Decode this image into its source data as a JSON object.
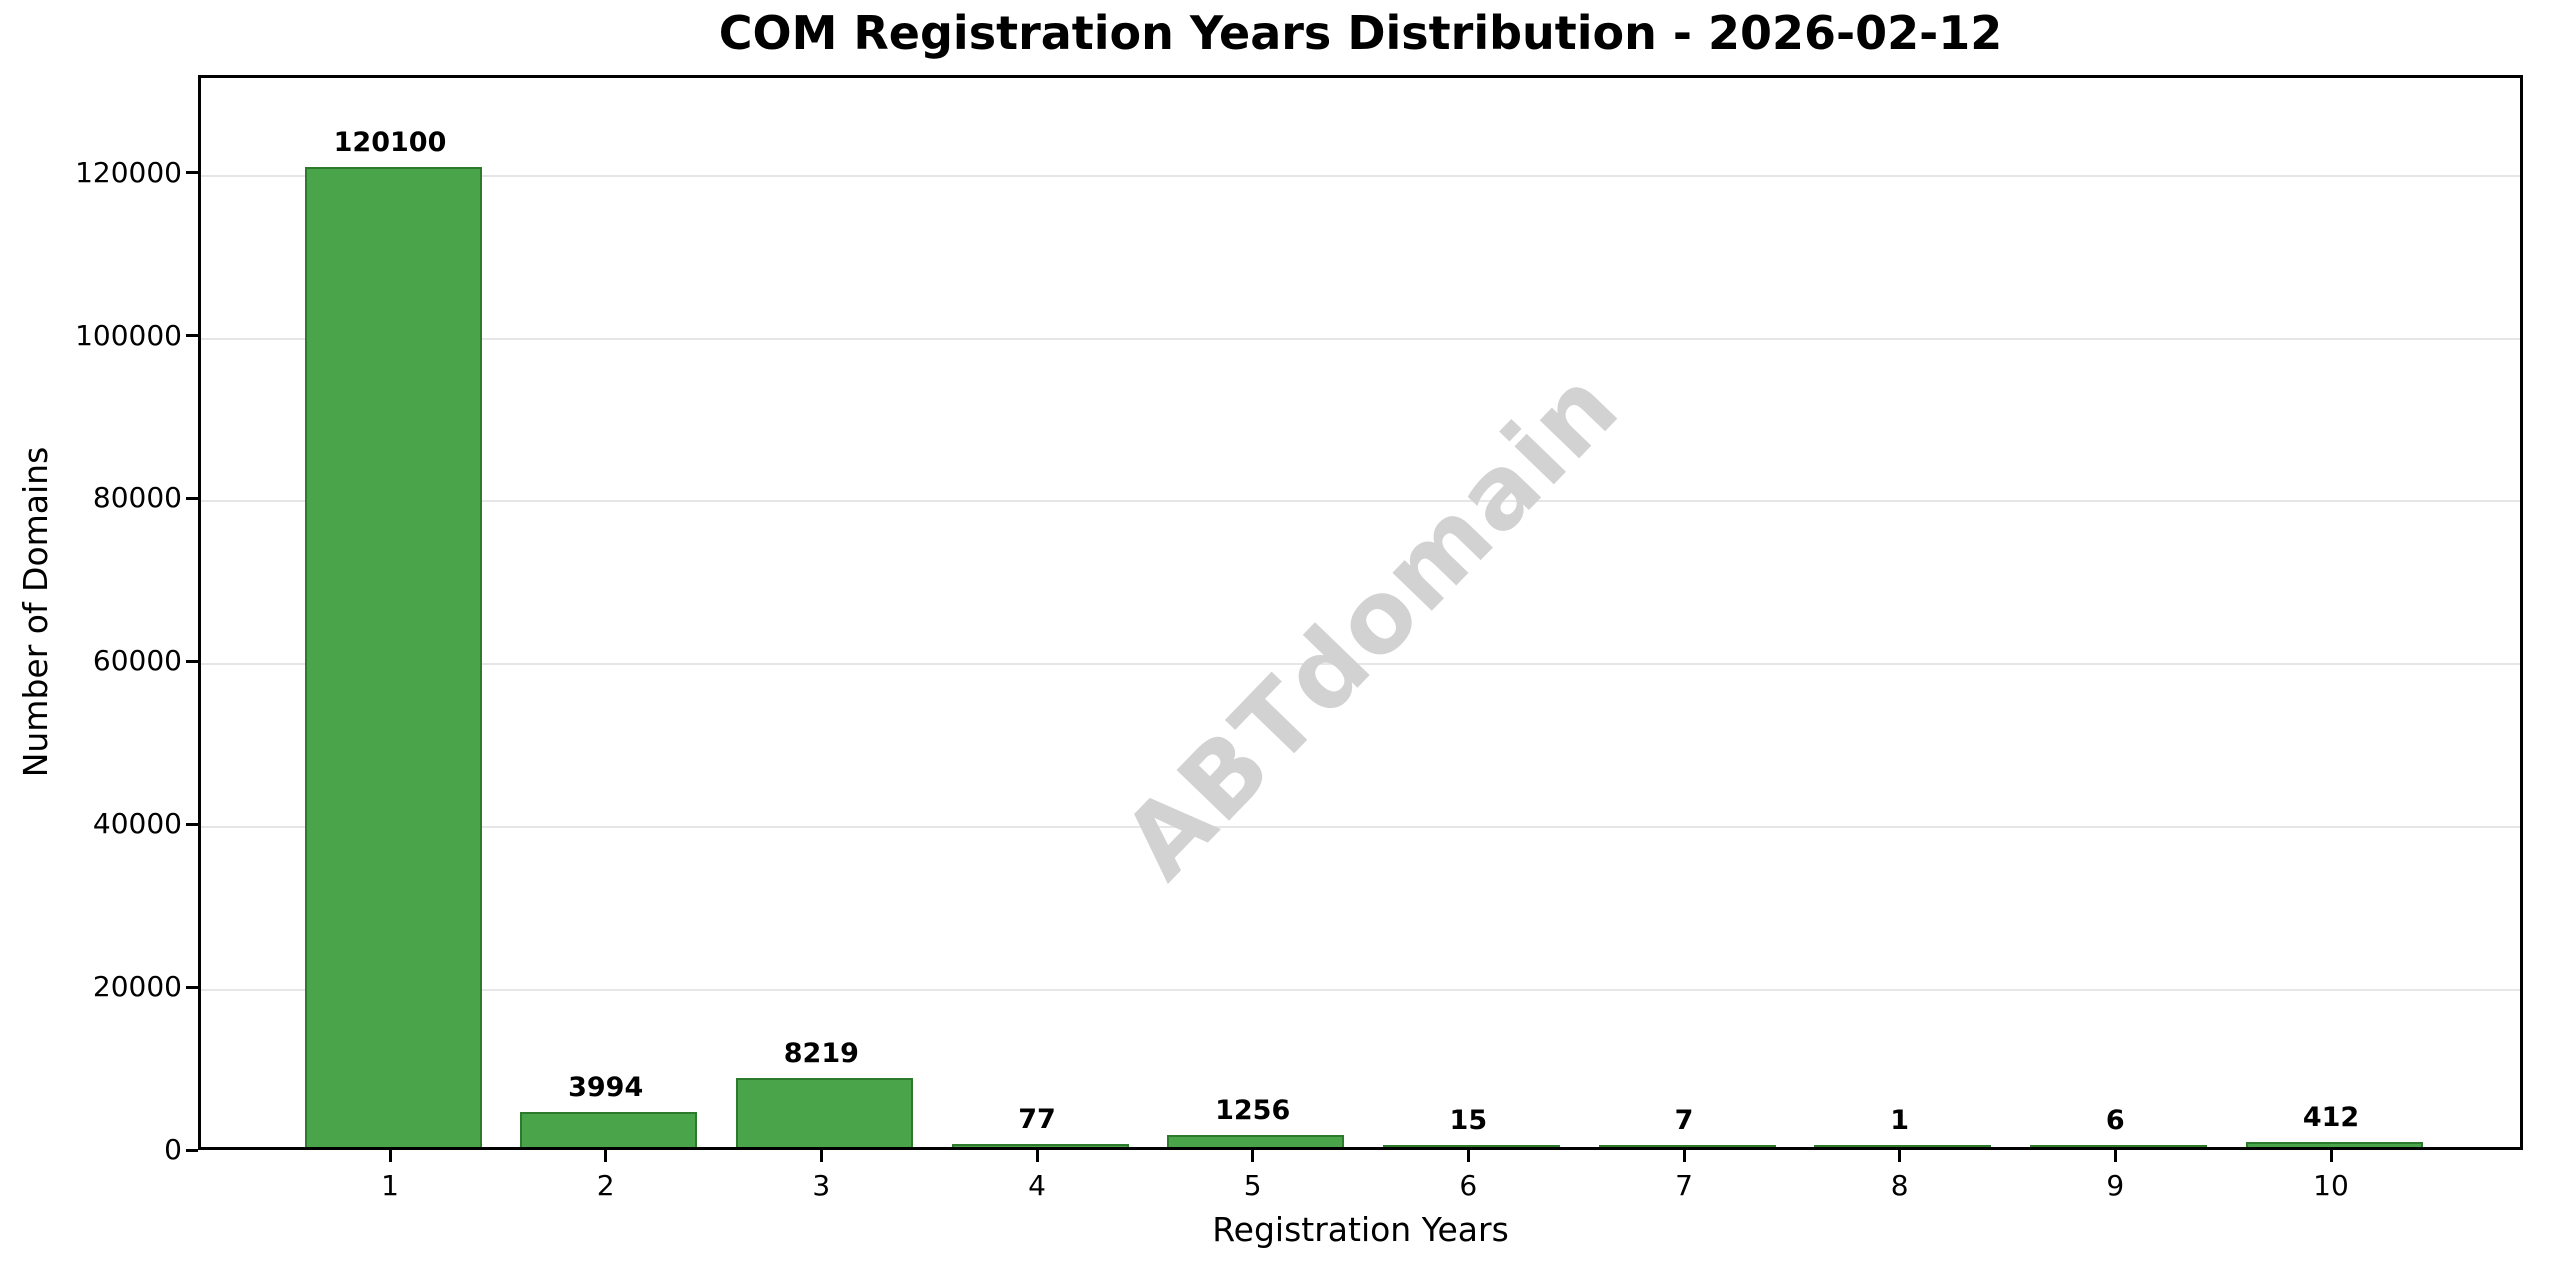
{
  "watermark": "ABTdomain",
  "colors": {
    "bar_fill": "#4aa44a",
    "bar_edge": "#2d7a2d",
    "gridline": "#e6e6e6",
    "spine": "#000000",
    "text": "#000000",
    "watermark": "#d2d2d2",
    "background": "#ffffff"
  },
  "chart_data": {
    "type": "bar",
    "title": "COM Registration Years Distribution - 2026-02-12",
    "xlabel": "Registration Years",
    "ylabel": "Number of Domains",
    "categories": [
      "1",
      "2",
      "3",
      "4",
      "5",
      "6",
      "7",
      "8",
      "9",
      "10"
    ],
    "values": [
      120100,
      3994,
      8219,
      77,
      1256,
      15,
      7,
      1,
      6,
      412
    ],
    "value_labels": [
      "120100",
      "3994",
      "8219",
      "77",
      "1256",
      "15",
      "7",
      "1",
      "6",
      "412"
    ],
    "yticks": [
      0,
      20000,
      40000,
      60000,
      80000,
      100000,
      120000
    ],
    "ytick_labels": [
      "0",
      "20000",
      "40000",
      "60000",
      "80000",
      "100000",
      "120000"
    ],
    "ylim": [
      0,
      132000
    ],
    "grid": true,
    "legend": false,
    "bar_width_fraction": 0.8
  }
}
